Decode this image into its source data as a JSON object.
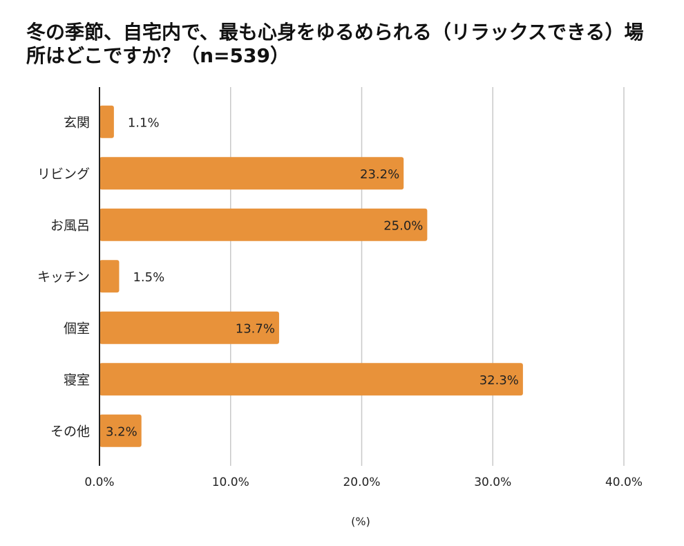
{
  "chart_data": {
    "type": "bar",
    "orientation": "horizontal",
    "title": "冬の季節、自宅内で、最も心身をゆるめられる（リラックスできる）場所はどこですか？（n=539）",
    "categories": [
      "玄関",
      "リビング",
      "お風呂",
      "キッチン",
      "個室",
      "寝室",
      "その他"
    ],
    "values": [
      1.1,
      23.2,
      25.0,
      1.5,
      13.7,
      32.3,
      3.2
    ],
    "data_labels": [
      "1.1%",
      "23.2%",
      "25.0%",
      "1.5%",
      "13.7%",
      "32.3%",
      "3.2%"
    ],
    "xlim": [
      0,
      40
    ],
    "x_ticks": [
      0,
      10,
      20,
      30,
      40
    ],
    "x_tick_labels": [
      "0.0%",
      "10.0%",
      "20.0%",
      "30.0%",
      "40.0%"
    ],
    "xlabel": "(%)",
    "ylabel": "",
    "grid": true,
    "bar_color": "#E8923A",
    "grid_color": "#C8C8C8",
    "axis_color": "#222222"
  }
}
